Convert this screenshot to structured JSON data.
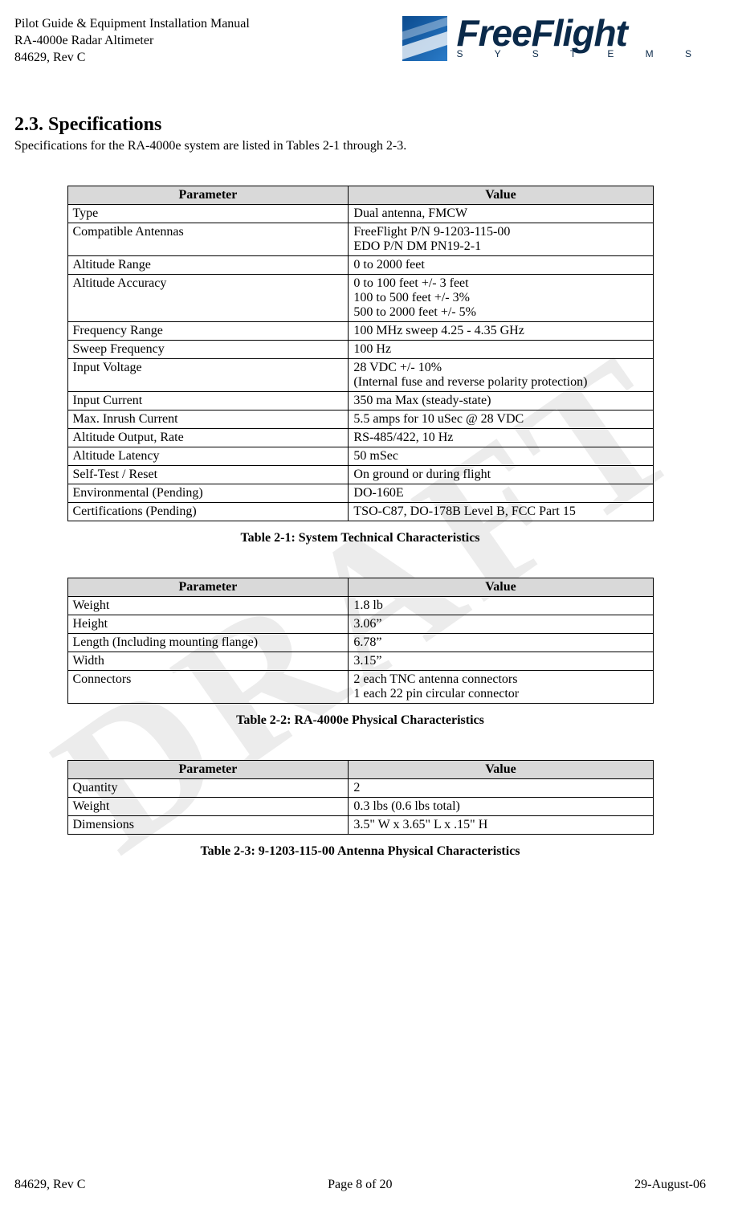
{
  "header": {
    "line1": "Pilot Guide & Equipment Installation Manual",
    "line2": "RA-4000e Radar Altimeter",
    "line3": "84629, Rev C",
    "logo_title": "FreeFlight",
    "logo_sub": "S Y S T E M S"
  },
  "watermark_text": "DRAFT",
  "section": {
    "number_title": "2.3.  Specifications",
    "intro": "Specifications for the RA-4000e system are listed in Tables 2-1 through 2-3."
  },
  "tables": {
    "header_param": "Parameter",
    "header_value": "Value",
    "t1": {
      "caption": "Table 2-1:  System Technical Characteristics",
      "rows": [
        {
          "p": "Type",
          "v": "Dual antenna, FMCW"
        },
        {
          "p": "Compatible Antennas",
          "v": "FreeFlight P/N     9-1203-115-00\nEDO P/N              DM PN19-2-1"
        },
        {
          "p": "Altitude Range",
          "v": "0 to 2000 feet"
        },
        {
          "p": "Altitude Accuracy",
          "v": "0 to 100 feet +/- 3 feet\n100 to 500 feet +/- 3%\n500 to 2000 feet +/- 5%"
        },
        {
          "p": "Frequency Range",
          "v": "100 MHz sweep 4.25 - 4.35 GHz"
        },
        {
          "p": "Sweep Frequency",
          "v": "100 Hz"
        },
        {
          "p": "Input Voltage",
          "v": "28 VDC +/- 10%\n(Internal fuse and reverse polarity protection)"
        },
        {
          "p": "Input Current",
          "v": "350 ma Max (steady-state)"
        },
        {
          "p": "Max. Inrush Current",
          "v": "5.5 amps for 10 uSec @ 28 VDC"
        },
        {
          "p": "Altitude Output, Rate",
          "v": "RS-485/422, 10 Hz"
        },
        {
          "p": "Altitude Latency",
          "v": "50 mSec"
        },
        {
          "p": "Self-Test / Reset",
          "v": "On ground or during flight"
        },
        {
          "p": "Environmental (Pending)",
          "v": "DO-160E"
        },
        {
          "p": "Certifications (Pending)",
          "v": "TSO-C87, DO-178B Level B, FCC Part 15"
        }
      ]
    },
    "t2": {
      "caption": "Table 2-2:  RA-4000e Physical Characteristics",
      "rows": [
        {
          "p": "Weight",
          "v": "1.8 lb"
        },
        {
          "p": "Height",
          "v": "3.06”"
        },
        {
          "p": "Length (Including mounting flange)",
          "v": "6.78”"
        },
        {
          "p": "Width",
          "v": "3.15”"
        },
        {
          "p": "Connectors",
          "v": "2 each TNC antenna connectors\n1 each 22 pin circular connector"
        }
      ]
    },
    "t3": {
      "caption": "Table 2-3:  9-1203-115-00 Antenna Physical Characteristics",
      "rows": [
        {
          "p": "Quantity",
          "v": "2"
        },
        {
          "p": "Weight",
          "v": "0.3 lbs (0.6 lbs total)"
        },
        {
          "p": "Dimensions",
          "v": "3.5\" W x 3.65\" L x .15\" H"
        }
      ]
    }
  },
  "footer": {
    "left": "84629, Rev C",
    "center": "Page 8 of 20",
    "right": "29-August-06"
  },
  "styling": {
    "page_bg": "#ffffff",
    "text_color": "#000000",
    "table_header_bg": "#d9d9d9",
    "border_color": "#000000",
    "watermark_color": "rgba(150,150,150,0.18)",
    "logo_primary": "#0b2a4a",
    "logo_mark_gradient_start": "#0b4b8f",
    "logo_mark_gradient_end": "#2a7bc8",
    "body_font": "Times New Roman",
    "body_size_pt": 12,
    "section_title_size_pt": 18,
    "logo_title_size_pt": 34
  }
}
